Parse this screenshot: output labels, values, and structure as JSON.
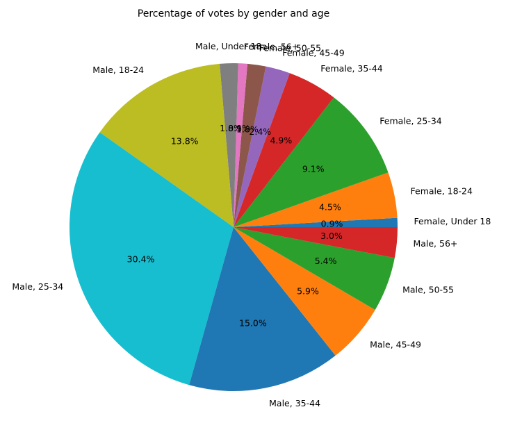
{
  "chart_data": {
    "type": "pie",
    "title": "Percentage of votes by gender and age",
    "start_angle_deg": 0,
    "direction": "counterclockwise",
    "slices": [
      {
        "label": "Female, Under 18",
        "value": 0.9,
        "pct_text": "0.9%",
        "color": "#1f77b4"
      },
      {
        "label": "Female, 18-24",
        "value": 4.5,
        "pct_text": "4.5%",
        "color": "#ff7f0e"
      },
      {
        "label": "Female, 25-34",
        "value": 9.1,
        "pct_text": "9.1%",
        "color": "#2ca02c"
      },
      {
        "label": "Female, 35-44",
        "value": 4.9,
        "pct_text": "4.9%",
        "color": "#d62728"
      },
      {
        "label": "Female, 45-49",
        "value": 2.4,
        "pct_text": "2.4%",
        "color": "#9467bd"
      },
      {
        "label": "Female, 50-55",
        "value": 1.8,
        "pct_text": "1.8%",
        "color": "#8c564b"
      },
      {
        "label": "Female, 56+",
        "value": 0.9,
        "pct_text": "0.9%",
        "color": "#e377c2"
      },
      {
        "label": "Male, Under 18",
        "value": 1.8,
        "pct_text": "1.8%",
        "color": "#7f7f7f"
      },
      {
        "label": "Male, 18-24",
        "value": 13.8,
        "pct_text": "13.8%",
        "color": "#bcbd22"
      },
      {
        "label": "Male, 25-34",
        "value": 30.4,
        "pct_text": "30.4%",
        "color": "#17becf"
      },
      {
        "label": "Male, 35-44",
        "value": 15.0,
        "pct_text": "15.0%",
        "color": "#1f77b4"
      },
      {
        "label": "Male, 45-49",
        "value": 5.9,
        "pct_text": "5.9%",
        "color": "#ff7f0e"
      },
      {
        "label": "Male, 50-55",
        "value": 5.4,
        "pct_text": "5.4%",
        "color": "#2ca02c"
      },
      {
        "label": "Male, 56+",
        "value": 3.0,
        "pct_text": "3.0%",
        "color": "#d62728"
      }
    ]
  }
}
